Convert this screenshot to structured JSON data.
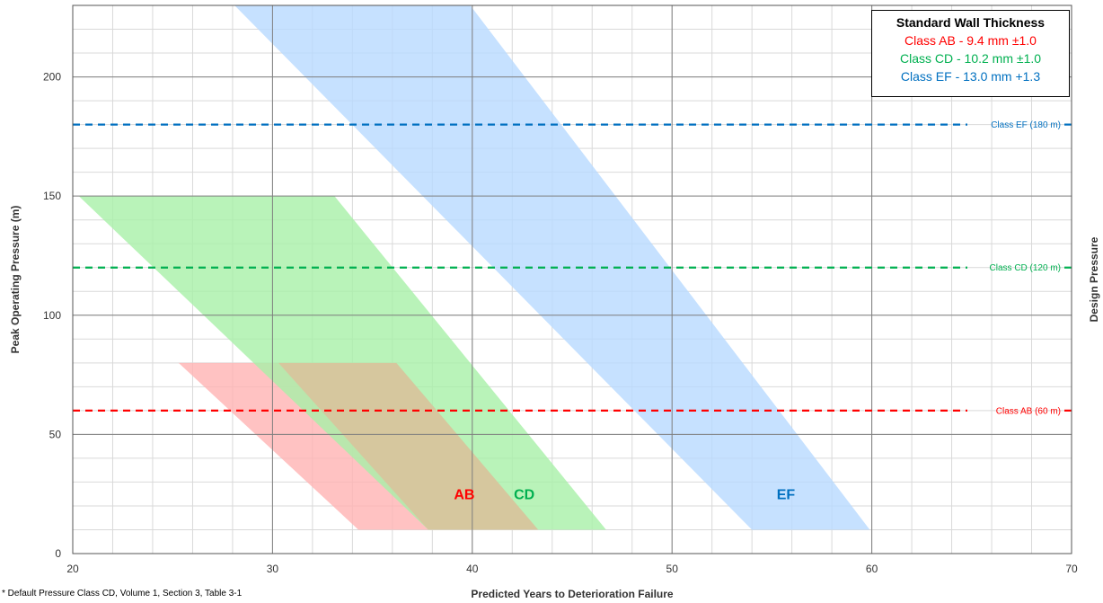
{
  "chart_data": {
    "type": "area",
    "xlabel": "Predicted Years to Deterioration Failure",
    "ylabel": "Peak Operating Pressure (m)",
    "y2label": "Design Pressure",
    "xlim": [
      20,
      70
    ],
    "ylim": [
      0,
      230
    ],
    "x_ticks": [
      20,
      30,
      40,
      50,
      60,
      70
    ],
    "y_ticks": [
      0,
      50,
      100,
      150,
      200
    ],
    "grid": true,
    "legend": {
      "title": "Standard Wall Thickness",
      "placement": "top-right",
      "items": [
        {
          "label": "Class AB - 9.4 mm ±1.0",
          "color": "#ff0000"
        },
        {
          "label": "Class CD - 10.2 mm ±1.0",
          "color": "#00b050"
        },
        {
          "label": "Class EF - 13.0 mm +1.3",
          "color": "#0070c0"
        }
      ]
    },
    "bands": [
      {
        "name": "AB",
        "label_at": [
          39.6,
          25
        ],
        "color": "#ff0000",
        "fill": "#ffb3b3",
        "polygon": [
          [
            25.3,
            80
          ],
          [
            36.2,
            80
          ],
          [
            43.3,
            10
          ],
          [
            34.3,
            10
          ]
        ]
      },
      {
        "name": "CD",
        "label_at": [
          42.6,
          25
        ],
        "color": "#00b050",
        "fill": "#a8f0a8",
        "polygon": [
          [
            20.3,
            150
          ],
          [
            33.1,
            150
          ],
          [
            46.7,
            10
          ],
          [
            37.8,
            10
          ]
        ]
      },
      {
        "name": "EF",
        "label_at": [
          55.7,
          25
        ],
        "color": "#0070c0",
        "fill": "#b8d9ff",
        "polygon": [
          [
            28.1,
            230
          ],
          [
            39.9,
            230
          ],
          [
            59.9,
            10
          ],
          [
            54.0,
            10
          ]
        ]
      }
    ],
    "overlap": {
      "fill": "#d6c79e",
      "polygon": [
        [
          30.3,
          80
        ],
        [
          36.2,
          80
        ],
        [
          43.3,
          10
        ],
        [
          37.8,
          10
        ]
      ]
    },
    "reference_lines": [
      {
        "y": 180,
        "label": "Class EF (180 m)",
        "color": "#0070c0"
      },
      {
        "y": 120,
        "label": "Class CD (120 m)",
        "color": "#00b050"
      },
      {
        "y": 60,
        "label": "Class AB (60 m)",
        "color": "#ff0000"
      }
    ],
    "footnote": "* Default Pressure Class CD, Volume 1, Section 3, Table 3-1"
  }
}
